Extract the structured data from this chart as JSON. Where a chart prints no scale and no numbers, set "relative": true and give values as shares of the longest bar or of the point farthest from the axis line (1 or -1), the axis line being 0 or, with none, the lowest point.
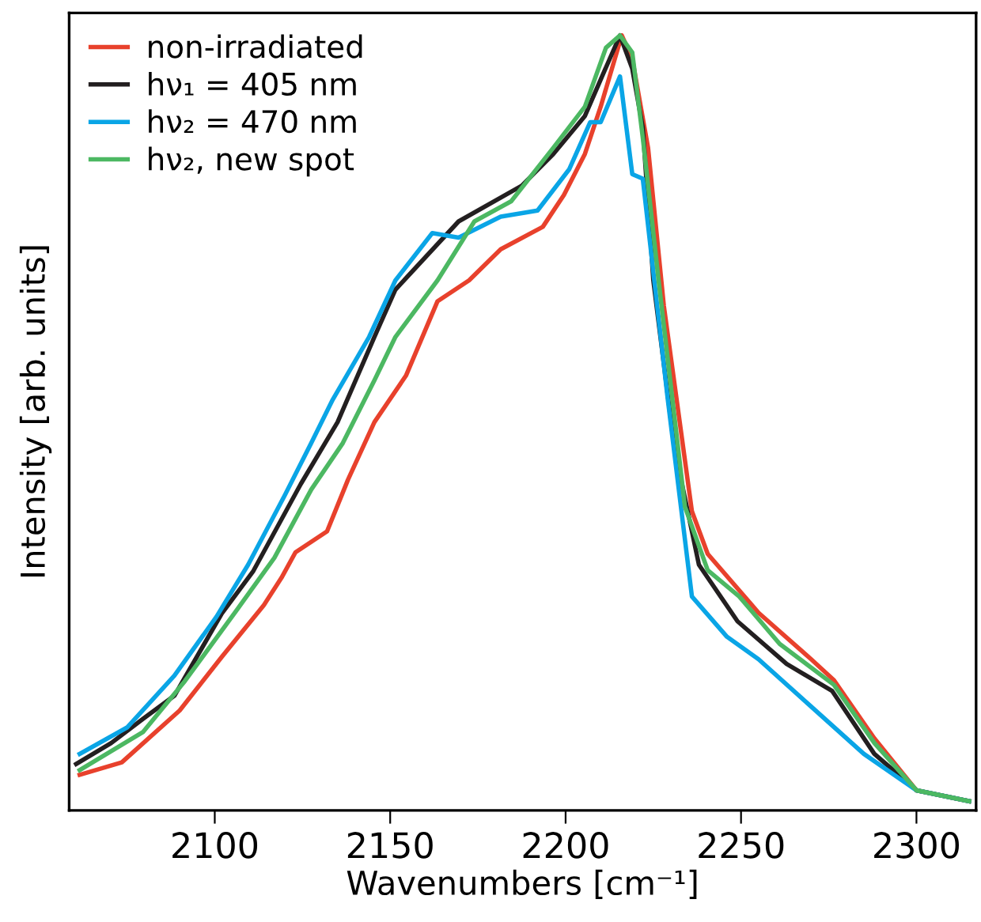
{
  "chart_data": {
    "type": "line",
    "relative": true,
    "xlabel": "Wavenumbers [cm⁻¹]",
    "ylabel": "Intensity [arb. units]",
    "xlim": [
      2058.5,
      2317
    ],
    "xticks": [
      2100,
      2150,
      2200,
      2250,
      2300
    ],
    "tick_labels": "x",
    "grid": false,
    "legend": "top left",
    "line_style": "solid",
    "marker": "none",
    "series": [
      {
        "name": "non-irradiated",
        "color": "#e8412c",
        "x": [
          2061.5,
          2073.5,
          2090,
          2102,
          2114,
          2119,
          2123,
          2132,
          2138,
          2145.5,
          2154.5,
          2163.5,
          2172.5,
          2181.5,
          2193.5,
          2199.5,
          2205.5,
          2210,
          2216,
          2219,
          2223.5,
          2228,
          2236,
          2240.5,
          2255,
          2270,
          2276.5,
          2288,
          2300,
          2315
        ],
        "values": [
          0.046,
          0.062,
          0.129,
          0.198,
          0.265,
          0.3,
          0.333,
          0.36,
          0.427,
          0.501,
          0.561,
          0.657,
          0.684,
          0.724,
          0.753,
          0.794,
          0.847,
          0.908,
          1,
          0.97,
          0.855,
          0.651,
          0.386,
          0.331,
          0.255,
          0.195,
          0.168,
          0.093,
          0.026,
          0.012
        ]
      },
      {
        "name": "hν₁ = 405 nm",
        "color": "#231f20",
        "x": [
          2060.5,
          2070.5,
          2079.5,
          2088.5,
          2102,
          2111,
          2124.5,
          2135,
          2145.5,
          2151.5,
          2169.5,
          2187.5,
          2196.5,
          2205.5,
          2210,
          2215.5,
          2219,
          2222,
          2225,
          2231,
          2238,
          2249,
          2263,
          2276,
          2288,
          2300,
          2315
        ],
        "values": [
          0.06,
          0.087,
          0.118,
          0.148,
          0.254,
          0.309,
          0.421,
          0.501,
          0.611,
          0.672,
          0.76,
          0.806,
          0.847,
          0.896,
          0.943,
          1,
          0.957,
          0.881,
          0.684,
          0.468,
          0.317,
          0.244,
          0.189,
          0.154,
          0.073,
          0.026,
          0.012
        ]
      },
      {
        "name": "hν₂ = 470 nm",
        "color": "#0aa5e6",
        "x": [
          2061.5,
          2075,
          2088.5,
          2100.5,
          2109.5,
          2120,
          2127.5,
          2133.5,
          2144,
          2151.5,
          2162,
          2169.5,
          2181.5,
          2192,
          2201,
          2207,
          2210,
          2215.5,
          2219,
          2222,
          2229,
          2236,
          2246,
          2255,
          2270,
          2285,
          2300,
          2315
        ],
        "values": [
          0.073,
          0.107,
          0.174,
          0.25,
          0.317,
          0.407,
          0.474,
          0.529,
          0.611,
          0.684,
          0.745,
          0.739,
          0.766,
          0.774,
          0.827,
          0.888,
          0.888,
          0.947,
          0.821,
          0.815,
          0.535,
          0.276,
          0.224,
          0.195,
          0.134,
          0.073,
          0.026,
          0.012
        ]
      },
      {
        "name": "hν₂, new spot",
        "color": "#4cb862",
        "x": [
          2061.5,
          2079.5,
          2091.5,
          2106.5,
          2117,
          2127.5,
          2136.5,
          2145.5,
          2151.5,
          2163.5,
          2174,
          2184.5,
          2196.5,
          2205.5,
          2211.5,
          2215.5,
          2219,
          2222,
          2226.5,
          2234,
          2240.5,
          2249.5,
          2261,
          2276.5,
          2288,
          2300,
          2315
        ],
        "values": [
          0.052,
          0.101,
          0.167,
          0.26,
          0.326,
          0.414,
          0.474,
          0.555,
          0.611,
          0.684,
          0.76,
          0.786,
          0.855,
          0.908,
          0.984,
          1,
          0.978,
          0.868,
          0.684,
          0.392,
          0.31,
          0.276,
          0.215,
          0.162,
          0.087,
          0.026,
          0.012
        ]
      }
    ]
  }
}
